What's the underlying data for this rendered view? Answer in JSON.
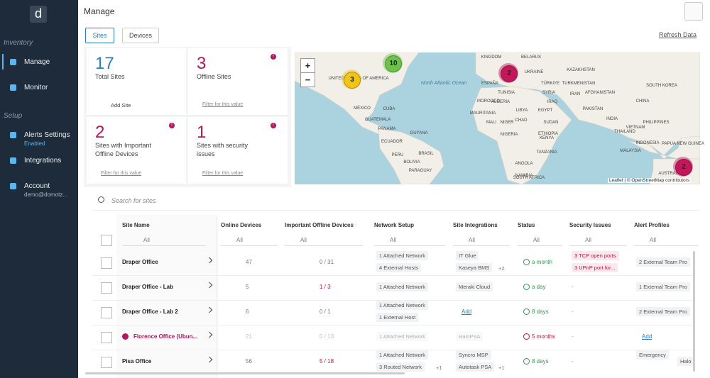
{
  "sidebar": {
    "logo": "d",
    "sections": [
      {
        "title": "Inventory",
        "items": [
          {
            "label": "Manage"
          },
          {
            "label": "Monitor"
          }
        ]
      },
      {
        "title": "Setup",
        "items": [
          {
            "label": "Alerts Settings",
            "sub": "Enabled"
          },
          {
            "label": "Integrations"
          },
          {
            "label": "Account",
            "sub": "demo@domotz..."
          }
        ]
      }
    ]
  },
  "header": {
    "title": "Manage",
    "tabs": [
      "Sites",
      "Devices"
    ],
    "refresh": "Refresh Data"
  },
  "cards": [
    {
      "value": "17",
      "label": "Total Sites",
      "action": "Add Site",
      "color": "#2a7fc1"
    },
    {
      "value": "3",
      "label": "Offline Sites",
      "action": "Filter for this value",
      "color": "#b3165c",
      "badge": "!"
    },
    {
      "value": "2",
      "label": "Sites with Important Offline Devices",
      "action": "Filter for this value",
      "color": "#b3165c",
      "badge": "!"
    },
    {
      "value": "1",
      "label": "Sites with security issues",
      "action": "Filter for this value",
      "color": "#b3165c",
      "badge": "!"
    }
  ],
  "map": {
    "zoom_in": "+",
    "zoom_out": "−",
    "clusters": [
      {
        "count": "10",
        "color": "#6cc24a"
      },
      {
        "count": "3",
        "color": "#f0c419"
      },
      {
        "count": "2",
        "color": "#c2185b"
      },
      {
        "count": "2",
        "color": "#c2185b"
      }
    ],
    "labels": [
      "KINGDOM",
      "BELARUS",
      "UKRAINE",
      "KAZAKHSTAN",
      "UNITED STATES OF AMERICA",
      "North Atlantic Ocean",
      "ESPAÑA",
      "TÜRKIYE",
      "TURKMENISTAN",
      "TUNISIA",
      "SYRIA",
      "IRAN",
      "AFGHANISTAN",
      "SOUTH KOREA",
      "MOROCCO",
      "IRAQ",
      "CHINA",
      "MÉXICO",
      "CUBA",
      "ALGERIA",
      "LIBYA",
      "EGYPT",
      "PAKISTAN",
      "INDIA",
      "GUATEMALA",
      "MAURITANIA",
      "MALI",
      "NIGER",
      "CHAD",
      "SUDAN",
      "VIETNAM",
      "PANAMA",
      "NIGERIA",
      "ETHIOPIA",
      "THAILAND",
      "PHILIPPINES",
      "ECUADOR",
      "GUYANA",
      "KENYA",
      "MALAYSIA",
      "BRASIL",
      "PERU",
      "TANZANIA",
      "INDONESIA",
      "PAPUA NEW GUINEA",
      "BOLIVIA",
      "ANGOLA",
      "NAMIBIA",
      "PARAGUAY",
      "SOUTH AFRICA",
      "AUSTRALIA"
    ],
    "attribution": "Leaflet | © OpenStreetMap contributors"
  },
  "search": {
    "placeholder": "Search for sites"
  },
  "table": {
    "columns": [
      "Site Name",
      "Online Devices",
      "Important Offline Devices",
      "Network Setup",
      "Site Integrations",
      "Status",
      "Security Issues",
      "Alert Profiles"
    ],
    "filter": "All",
    "rows": [
      {
        "name": "Draper Office",
        "online": "47",
        "offline": "0 / 31",
        "network": {
          "items": [
            "1 Attached Network",
            "4 External Hosts"
          ]
        },
        "integrations": {
          "items": [
            "IT Glue",
            "Kaseya BMS"
          ],
          "more": "+2"
        },
        "status": {
          "text": "a month",
          "color": "#2e9a4f"
        },
        "security": {
          "items": [
            "3 TCP open ports",
            "3 UPnP port for..."
          ]
        },
        "alerts": {
          "items": [
            "2 External Team Pro"
          ]
        }
      },
      {
        "name": "Draper Office - Lab",
        "online": "5",
        "offline": "1 / 3",
        "offline_color": "#c0143c",
        "network": {
          "items": [
            "1 Attached Network"
          ]
        },
        "integrations": {
          "items": [
            "Meraki Cloud"
          ]
        },
        "status": {
          "text": "a day",
          "color": "#2e9a4f"
        },
        "security": {
          "text": "-"
        },
        "alerts": {
          "items": [
            "1 External Team Pro"
          ]
        }
      },
      {
        "name": "Draper Office - Lab 2",
        "online": "6",
        "offline": "0 / 1",
        "network": {
          "items": [
            "1 Attached Network",
            "1 External Host"
          ]
        },
        "integrations": {
          "link": "Add"
        },
        "status": {
          "text": "8 days",
          "color": "#2e9a4f"
        },
        "security": {
          "text": "-"
        },
        "alerts": {
          "items": [
            "2 External Team Pro"
          ]
        }
      },
      {
        "name": "Florence Office (Ubun...",
        "name_color": "#b3165c",
        "dim": true,
        "online": "21",
        "offline": "0 / 13",
        "network": {
          "items": [
            "1 Attached Network"
          ]
        },
        "integrations": {
          "items": [
            "HaloPSA"
          ]
        },
        "status": {
          "text": "5 months",
          "color": "#c0143c"
        },
        "security": {
          "text": "-"
        },
        "alerts": {
          "link": "Add"
        }
      },
      {
        "name": "Pisa Office",
        "online": "56",
        "offline": "5 / 18",
        "offline_color": "#c0143c",
        "network": {
          "items": [
            "1 Attached Network",
            "3 Routed Network"
          ],
          "more": "+1"
        },
        "integrations": {
          "items": [
            "Syncro MSP",
            "Autotask PSA"
          ],
          "more": "+1"
        },
        "status": {
          "text": "8 days",
          "color": "#2e9a4f"
        },
        "security": {
          "text": "-"
        },
        "alerts": {
          "items": [
            "Emergency",
            "Halo"
          ]
        }
      }
    ]
  }
}
